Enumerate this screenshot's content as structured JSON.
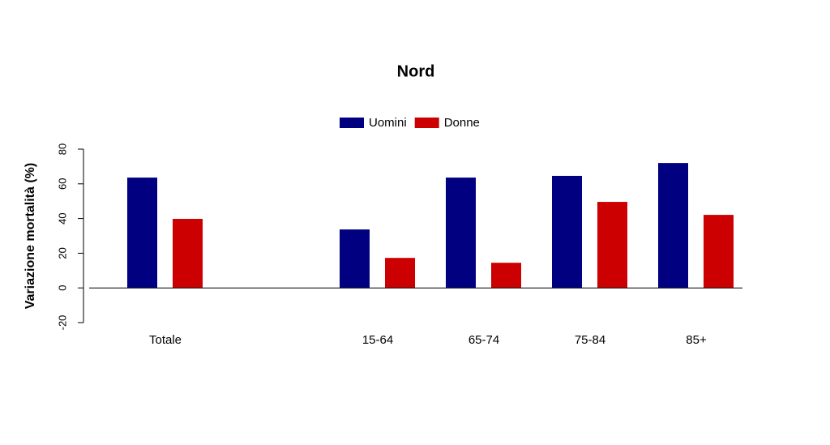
{
  "chart_data": {
    "type": "bar",
    "title": "Nord",
    "y_label": "Variazione mortalità (%)",
    "categories": [
      "Totale",
      null,
      "15-64",
      "65-74",
      "75-84",
      "85+"
    ],
    "series": [
      {
        "name": "Uomini",
        "color": "#000080",
        "values": [
          63.6,
          null,
          33.7,
          63.6,
          64.6,
          72
        ]
      },
      {
        "name": "Donne",
        "color": "#cc0000",
        "values": [
          39.8,
          null,
          17.3,
          14.5,
          49.6,
          42.1
        ]
      }
    ],
    "ylim": [
      -20,
      80
    ],
    "yticks": [
      -20,
      0,
      20,
      40,
      60,
      80
    ],
    "legend": "top"
  }
}
